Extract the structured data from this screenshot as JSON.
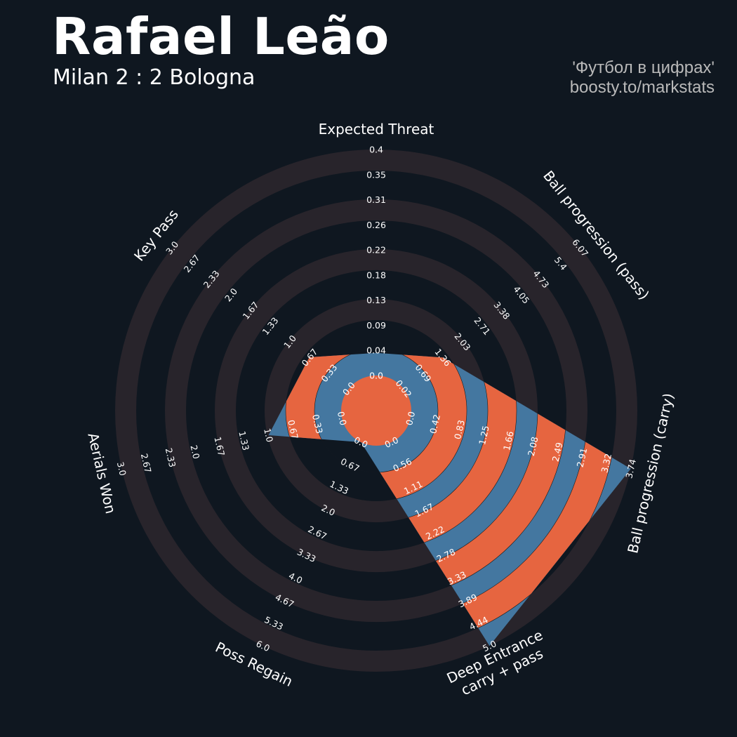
{
  "header": {
    "player": "Rafael Leão",
    "match": "Milan 2 : 2 Bologna",
    "credit_line1": "'Футбол в цифрах'",
    "credit_line2": "boosty.to/markstats"
  },
  "colors": {
    "background": "#0f1720",
    "ring_band": "#28242b",
    "player_fill": "#4477a0",
    "ring_accent": "#e66540",
    "text": "#ffffff",
    "credit_text": "#b9b9b9"
  },
  "chart_data": {
    "type": "radar",
    "title": "Rafael Leão",
    "subtitle": "Milan 2 : 2 Bologna",
    "params": [
      "Expected Threat",
      "Ball progression (pass)",
      "Ball progression (carry)",
      "Deep Entrance\ncarry + pass",
      "Poss Regain",
      "Aerials Won",
      "Key Pass"
    ],
    "ranges": [
      [
        0.0,
        0.4
      ],
      [
        0.02,
        6.07
      ],
      [
        0.0,
        3.74
      ],
      [
        0.0,
        5.0
      ],
      [
        0.0,
        6.0
      ],
      [
        0.0,
        3.0
      ],
      [
        0.0,
        3.0
      ]
    ],
    "values": [
      0.04,
      1.36,
      3.74,
      5.0,
      0.0,
      1.0,
      0.67
    ],
    "tick_labels": [
      [
        "0.0",
        "0.04",
        "0.09",
        "0.13",
        "0.18",
        "0.22",
        "0.26",
        "0.31",
        "0.35",
        "0.4"
      ],
      [
        "0.02",
        "0.69",
        "1.36",
        "2.03",
        "2.71",
        "3.38",
        "4.05",
        "4.73",
        "5.4",
        "6.07"
      ],
      [
        "0.0",
        "0.42",
        "0.83",
        "1.25",
        "1.66",
        "2.08",
        "2.49",
        "2.91",
        "3.32",
        "3.74"
      ],
      [
        "0.0",
        "0.56",
        "1.11",
        "1.67",
        "2.22",
        "2.78",
        "3.33",
        "3.89",
        "4.44",
        "5.0"
      ],
      [
        "0.0",
        "0.67",
        "1.33",
        "2.0",
        "2.67",
        "3.33",
        "4.0",
        "4.67",
        "5.33",
        "6.0"
      ],
      [
        "0.0",
        "0.33",
        "0.67",
        "1.0",
        "1.33",
        "1.67",
        "2.0",
        "2.33",
        "2.67",
        "3.0"
      ],
      [
        "0.0",
        "0.33",
        "0.67",
        "1.0",
        "1.33",
        "1.67",
        "2.0",
        "2.33",
        "2.67",
        "3.0"
      ]
    ],
    "rings": 9,
    "legend": "none",
    "grid": true
  }
}
